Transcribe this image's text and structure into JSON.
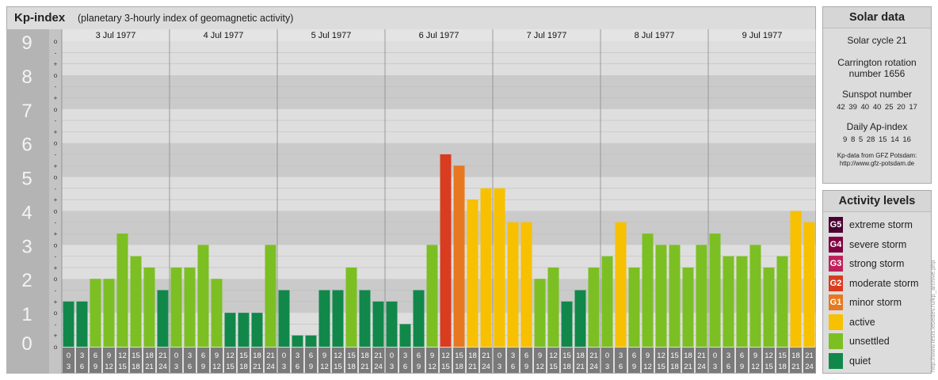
{
  "header": {
    "title": "Kp-index",
    "subtitle": "(planetary 3-hourly index of geomagnetic activity)"
  },
  "solar_data": {
    "title": "Solar data",
    "cycle": "Solar cycle 21",
    "carrington_line1": "Carrington rotation",
    "carrington_line2": "number 1656",
    "sunspot_label": "Sunspot number",
    "sunspot_values": "42  39  40  40  25  20  17",
    "ap_label": "Daily Ap-index",
    "ap_values": "9  8  5  28  15  14  16",
    "credit_line1": "Kp-data from GFZ Potsdam:",
    "credit_line2": "http://www.gfz-potsdam.de"
  },
  "activity_levels": {
    "title": "Activity levels",
    "items": [
      {
        "badge": "G5",
        "label": "extreme storm",
        "color": "#4a0030"
      },
      {
        "badge": "G4",
        "label": "severe storm",
        "color": "#800040"
      },
      {
        "badge": "G3",
        "label": "strong storm",
        "color": "#c0205a"
      },
      {
        "badge": "G2",
        "label": "moderate storm",
        "color": "#d93c1e"
      },
      {
        "badge": "G1",
        "label": "minor storm",
        "color": "#e87820"
      },
      {
        "badge": "",
        "label": "active",
        "color": "#f7c000"
      },
      {
        "badge": "",
        "label": "unsettled",
        "color": "#7cbf23"
      },
      {
        "badge": "",
        "label": "quiet",
        "color": "#11884a"
      }
    ]
  },
  "side_credit": "http://www.tesis.lebedev.ru/kp_archive.php",
  "chart_data": {
    "type": "bar",
    "title": "Kp-index",
    "ylim": [
      0,
      9
    ],
    "y_major_labels": [
      "0",
      "1",
      "2",
      "3",
      "4",
      "5",
      "6",
      "7",
      "8",
      "9"
    ],
    "y_minor_labels": [
      "o",
      "+",
      "-"
    ],
    "days": [
      "3 Jul 1977",
      "4 Jul 1977",
      "5 Jul 1977",
      "6 Jul 1977",
      "7 Jul 1977",
      "8 Jul 1977",
      "9 Jul 1977"
    ],
    "interval_labels": [
      [
        "0",
        "3"
      ],
      [
        "3",
        "6"
      ],
      [
        "6",
        "9"
      ],
      [
        "9",
        "12"
      ],
      [
        "12",
        "15"
      ],
      [
        "15",
        "18"
      ],
      [
        "18",
        "21"
      ],
      [
        "21",
        "24"
      ]
    ],
    "values": [
      1.333,
      1.333,
      2.0,
      2.0,
      3.333,
      2.667,
      2.333,
      1.667,
      2.333,
      2.333,
      3.0,
      2.0,
      1.0,
      1.0,
      1.0,
      3.0,
      1.667,
      0.333,
      0.333,
      1.667,
      1.667,
      2.333,
      1.667,
      1.333,
      1.333,
      0.667,
      1.667,
      3.0,
      5.667,
      5.333,
      4.333,
      4.667,
      4.667,
      3.667,
      3.667,
      2.0,
      2.333,
      1.333,
      1.667,
      2.333,
      2.667,
      3.667,
      2.333,
      3.333,
      3.0,
      3.0,
      2.333,
      3.0,
      3.333,
      2.667,
      2.667,
      3.0,
      2.333,
      2.667,
      4.0,
      3.667
    ],
    "colors": {
      "quiet": "#11884a",
      "unsettled": "#7cbf23",
      "active": "#f7c000",
      "minor": "#e87820",
      "moderate": "#d93c1e"
    }
  }
}
